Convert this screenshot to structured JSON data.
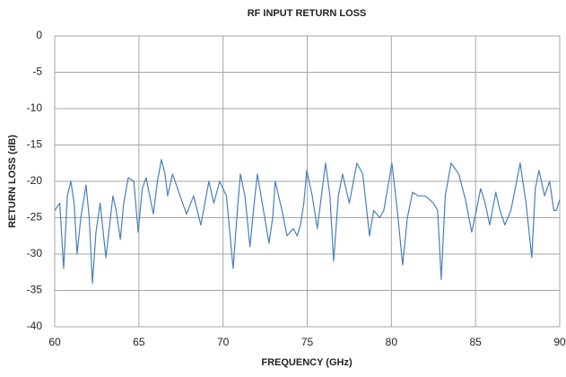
{
  "chart_data": {
    "type": "line",
    "title": "RF INPUT RETURN LOSS",
    "xlabel": "FREQUENCY (GHz)",
    "ylabel": "RETURN LOSS (dB)",
    "x": [
      60.0,
      60.3,
      60.53,
      60.75,
      60.96,
      61.15,
      61.33,
      61.55,
      61.86,
      62.05,
      62.24,
      62.45,
      62.7,
      63.04,
      63.46,
      63.65,
      63.9,
      64.1,
      64.37,
      64.7,
      64.96,
      65.2,
      65.43,
      65.86,
      66.1,
      66.34,
      66.55,
      66.71,
      67.0,
      67.3,
      67.6,
      67.83,
      68.25,
      68.68,
      69.16,
      69.45,
      69.8,
      70.2,
      70.6,
      70.85,
      71.03,
      71.3,
      71.6,
      71.85,
      72.04,
      72.4,
      72.73,
      72.95,
      73.1,
      73.5,
      73.8,
      74.17,
      74.4,
      74.6,
      74.8,
      74.97,
      75.3,
      75.6,
      76.09,
      76.35,
      76.57,
      76.85,
      77.1,
      77.5,
      77.95,
      78.3,
      78.7,
      78.95,
      79.3,
      79.55,
      79.85,
      80.03,
      80.35,
      80.67,
      80.95,
      81.26,
      81.6,
      82.0,
      82.5,
      82.75,
      82.96,
      83.2,
      83.55,
      84.0,
      84.4,
      84.77,
      85.05,
      85.3,
      85.57,
      85.84,
      86.2,
      86.45,
      86.74,
      87.1,
      87.4,
      87.65,
      88.0,
      88.34,
      88.55,
      88.77,
      89.1,
      89.4,
      89.65,
      89.8,
      90.0
    ],
    "values": [
      -24,
      -23,
      -32,
      -22,
      -20,
      -23,
      -30,
      -25,
      -20.5,
      -25,
      -34,
      -27,
      -23,
      -30.5,
      -22,
      -24,
      -28,
      -23,
      -19.5,
      -20,
      -27,
      -21,
      -19.5,
      -24.5,
      -20,
      -17,
      -19,
      -22,
      -19,
      -21,
      -23,
      -24.5,
      -22,
      -26,
      -20,
      -23,
      -20,
      -22,
      -32,
      -24,
      -19,
      -22,
      -29,
      -23,
      -19,
      -24,
      -28.5,
      -25,
      -20,
      -24,
      -27.5,
      -26.5,
      -27.5,
      -26,
      -23,
      -18.5,
      -22,
      -26.5,
      -17.5,
      -22,
      -31,
      -22,
      -19,
      -23,
      -17.5,
      -19,
      -27.5,
      -24,
      -25,
      -24,
      -20,
      -17.5,
      -24,
      -31.5,
      -25,
      -21.5,
      -22,
      -22,
      -23,
      -24,
      -33.5,
      -22,
      -17.5,
      -19,
      -22.5,
      -27,
      -24,
      -21,
      -23,
      -26,
      -21.5,
      -24,
      -26,
      -24,
      -20.5,
      -17.5,
      -23,
      -30.5,
      -21,
      -18.5,
      -22,
      -20,
      -24,
      -24,
      -22.5
    ],
    "color": "#4a7ebb",
    "xlim": [
      60,
      90
    ],
    "xticks": [
      60,
      65,
      70,
      75,
      80,
      85,
      90
    ],
    "ylim": [
      -40,
      0
    ],
    "yticks": [
      -40,
      -35,
      -30,
      -25,
      -20,
      -15,
      -10,
      -5,
      0
    ],
    "grid": true
  }
}
